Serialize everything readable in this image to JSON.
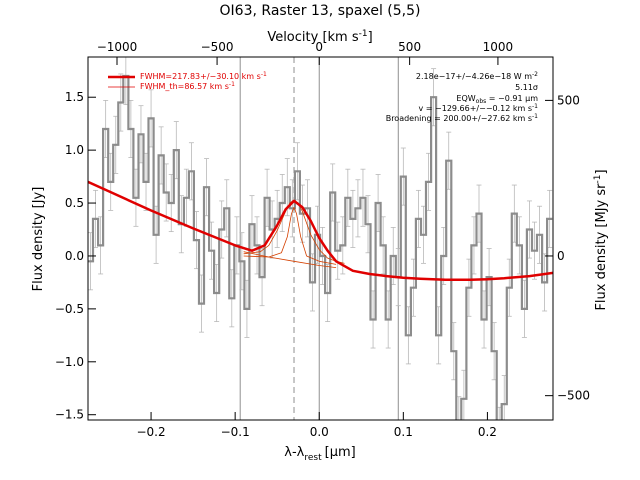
{
  "chart_data": {
    "type": "line",
    "title": "OI63, Raster 13, spaxel (5,5)",
    "xlabel": "λ-λ",
    "xlabel_sub": "rest",
    "xlabel_unit": "[μm]",
    "ylabel": "Flux density [Jy]",
    "top_xlabel": "Velocity [km s",
    "top_xlabel_sup": "-1",
    "top_xlabel_end": "]",
    "right_ylabel": "Flux density [MJy sr",
    "right_ylabel_sup": "-1",
    "right_ylabel_end": "]",
    "xlim": [
      -0.275,
      0.278
    ],
    "ylim": [
      -1.55,
      1.88
    ],
    "x_ticks": [
      -0.2,
      -0.1,
      0.0,
      0.1,
      0.2
    ],
    "x_tick_labels": [
      "−0.2",
      "−0.1",
      "0.0",
      "0.1",
      "0.2"
    ],
    "y_ticks": [
      -1.5,
      -1.0,
      -0.5,
      0.0,
      0.5,
      1.0,
      1.5
    ],
    "y_tick_labels": [
      "−1.5",
      "−1.0",
      "−0.5",
      "0.0",
      "0.5",
      "1.0",
      "1.5"
    ],
    "top_ticks": [
      {
        "x": -0.2405,
        "label": "−1000"
      },
      {
        "x": -0.1215,
        "label": "−500"
      },
      {
        "x": 0.0,
        "label": "0"
      },
      {
        "x": 0.1075,
        "label": "500"
      },
      {
        "x": 0.2125,
        "label": "1000"
      }
    ],
    "right_ticks": [
      {
        "y": 1.47,
        "label": "500"
      },
      {
        "y": 0.0,
        "label": "0"
      },
      {
        "y": -1.32,
        "label": "−500"
      }
    ],
    "vlines_solid": [
      -0.094,
      0.0,
      0.094
    ],
    "vline_dashed": -0.03,
    "legend": [
      {
        "label": "FWHM=217.83+/−30.10 km s",
        "sup": "-1",
        "style": "thick"
      },
      {
        "label": "FWHM_th=86.57 km s",
        "sup": "-1",
        "style": "thin"
      }
    ],
    "annotations": [
      {
        "text": "2.18e−17+/−4.26e−18 W m",
        "sup": "-2"
      },
      {
        "text": "5.11σ"
      },
      {
        "text": "EQW",
        "sub": "obs",
        "rest": " = −0.91 μm"
      },
      {
        "text": "v = −129.66+/−−0.12 km s",
        "sup": "-1"
      },
      {
        "text": "Broadening = 200.00+/−27.62 km s",
        "sup": "-1"
      }
    ],
    "series": [
      {
        "style": "data",
        "x": [
          -0.272,
          -0.266,
          -0.26,
          -0.254,
          -0.248,
          -0.242,
          -0.236,
          -0.23,
          -0.224,
          -0.218,
          -0.212,
          -0.206,
          -0.2,
          -0.194,
          -0.188,
          -0.182,
          -0.176,
          -0.17,
          -0.164,
          -0.158,
          -0.152,
          -0.146,
          -0.14,
          -0.134,
          -0.128,
          -0.122,
          -0.116,
          -0.11,
          -0.104,
          -0.098,
          -0.092,
          -0.086,
          -0.08,
          -0.074,
          -0.068,
          -0.062,
          -0.056,
          -0.05,
          -0.044,
          -0.038,
          -0.032,
          -0.026,
          -0.02,
          -0.014,
          -0.008,
          -0.002,
          0.004,
          0.01,
          0.016,
          0.022,
          0.028,
          0.034,
          0.04,
          0.046,
          0.052,
          0.058,
          0.064,
          0.07,
          0.076,
          0.082,
          0.088,
          0.094,
          0.1,
          0.106,
          0.112,
          0.118,
          0.124,
          0.13,
          0.136,
          0.142,
          0.148,
          0.154,
          0.16,
          0.166,
          0.172,
          0.178,
          0.184,
          0.19,
          0.196,
          0.202,
          0.208,
          0.214,
          0.22,
          0.226,
          0.232,
          0.238,
          0.244,
          0.25,
          0.256,
          0.262,
          0.268,
          0.274
        ],
        "y": [
          -0.05,
          0.35,
          0.1,
          1.2,
          0.7,
          1.05,
          1.45,
          1.7,
          1.2,
          0.55,
          1.15,
          0.7,
          1.3,
          0.2,
          0.95,
          0.6,
          0.5,
          1.0,
          0.3,
          0.55,
          0.8,
          0.15,
          -0.45,
          0.65,
          0.05,
          -0.35,
          0.25,
          0.45,
          -0.4,
          0.1,
          -0.05,
          -0.5,
          0.3,
          0.1,
          -0.2,
          0.55,
          0.25,
          0.35,
          0.5,
          0.65,
          0.45,
          0.8,
          0.4,
          0.45,
          -0.25,
          0.2,
          0.0,
          -0.35,
          0.6,
          0.05,
          0.1,
          0.55,
          0.35,
          0.45,
          0.55,
          0.3,
          -0.6,
          0.5,
          0.1,
          -0.6,
          0.0,
          -0.2,
          0.75,
          -0.75,
          -0.3,
          0.35,
          0.2,
          0.7,
          1.5,
          -0.75,
          0.0,
          0.9,
          -0.9,
          -1.6,
          -1.35,
          -0.3,
          0.1,
          0.4,
          -0.6,
          -0.2,
          -0.9,
          -1.7,
          -1.4,
          -0.3,
          0.4,
          0.1,
          -0.5,
          0.25,
          0.05,
          0.2,
          -0.25,
          0.35
        ],
        "yerr": 0.27
      },
      {
        "style": "fit",
        "x": [
          -0.275,
          -0.25,
          -0.2,
          -0.15,
          -0.1,
          -0.08,
          -0.065,
          -0.05,
          -0.04,
          -0.03,
          -0.02,
          -0.01,
          0.0,
          0.01,
          0.02,
          0.04,
          0.06,
          0.08,
          0.1,
          0.12,
          0.15,
          0.18,
          0.2,
          0.22,
          0.25,
          0.278
        ],
        "y": [
          0.7,
          0.61,
          0.43,
          0.26,
          0.1,
          0.05,
          0.1,
          0.29,
          0.44,
          0.52,
          0.46,
          0.33,
          0.17,
          0.05,
          -0.05,
          -0.14,
          -0.17,
          -0.19,
          -0.205,
          -0.215,
          -0.225,
          -0.225,
          -0.22,
          -0.21,
          -0.19,
          -0.16
        ]
      },
      {
        "style": "gaussian",
        "x": [
          -0.09,
          -0.07,
          -0.06,
          -0.05,
          -0.04,
          -0.035,
          -0.03,
          -0.025,
          -0.02,
          -0.01,
          0.0,
          0.01,
          0.02,
          0.03
        ],
        "y": [
          0.02,
          0.04,
          0.1,
          0.24,
          0.42,
          0.5,
          0.53,
          0.5,
          0.42,
          0.2,
          0.06,
          -0.02,
          -0.05,
          -0.07
        ]
      },
      {
        "style": "gaussian_th",
        "x": [
          -0.09,
          -0.06,
          -0.045,
          -0.038,
          -0.033,
          -0.03,
          -0.027,
          -0.022,
          -0.015,
          0.0,
          0.02
        ],
        "y": [
          0.0,
          -0.01,
          0.03,
          0.18,
          0.4,
          0.46,
          0.4,
          0.18,
          0.0,
          -0.05,
          -0.08
        ]
      },
      {
        "style": "baseline",
        "x": [
          -0.09,
          -0.06,
          -0.03,
          0.0,
          0.02
        ],
        "y": [
          0.04,
          -0.01,
          -0.05,
          -0.09,
          -0.11
        ]
      }
    ],
    "colors": {
      "data": "#8c8c8c",
      "error": "#b8b8b8",
      "fit": "#e00000",
      "component": "#d44000",
      "vline": "#909090",
      "axis": "#000000"
    }
  }
}
